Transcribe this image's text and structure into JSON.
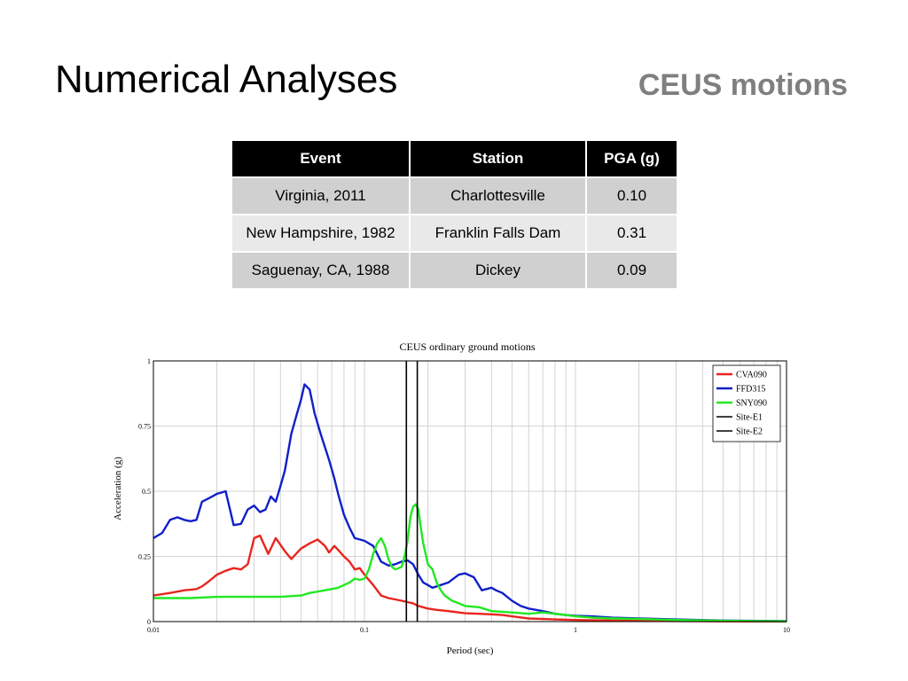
{
  "slide": {
    "title": "Numerical Analyses",
    "subtitle": "CEUS motions"
  },
  "table": {
    "headers": [
      "Event",
      "Station",
      "PGA (g)"
    ],
    "rows": [
      [
        "Virginia, 2011",
        "Charlottesville",
        "0.10"
      ],
      [
        "New Hampshire, 1982",
        "Franklin Falls Dam",
        "0.31"
      ],
      [
        "Saguenay, CA, 1988",
        "Dickey",
        "0.09"
      ]
    ]
  },
  "chart_data": {
    "type": "line",
    "title": "CEUS ordinary ground motions",
    "xlabel": "Period (sec)",
    "ylabel": "Acceleration (g)",
    "x_scale": "log",
    "xlim": [
      0.01,
      10
    ],
    "ylim": [
      0,
      1
    ],
    "x_ticks": [
      0.01,
      0.1,
      1,
      10
    ],
    "x_tick_labels": [
      "0.01",
      "0.1",
      "1",
      "10"
    ],
    "y_ticks": [
      0,
      0.25,
      0.5,
      0.75,
      1
    ],
    "y_tick_labels": [
      "0",
      "0.25",
      "0.5",
      "0.75",
      "1"
    ],
    "grid": true,
    "legend_position": "top-right",
    "series": [
      {
        "name": "CVA090",
        "color": "#e8251e",
        "points": [
          [
            0.01,
            0.1
          ],
          [
            0.011,
            0.105
          ],
          [
            0.012,
            0.11
          ],
          [
            0.013,
            0.115
          ],
          [
            0.014,
            0.12
          ],
          [
            0.015,
            0.122
          ],
          [
            0.016,
            0.125
          ],
          [
            0.017,
            0.135
          ],
          [
            0.018,
            0.15
          ],
          [
            0.019,
            0.165
          ],
          [
            0.02,
            0.18
          ],
          [
            0.022,
            0.195
          ],
          [
            0.024,
            0.205
          ],
          [
            0.026,
            0.2
          ],
          [
            0.028,
            0.22
          ],
          [
            0.03,
            0.32
          ],
          [
            0.032,
            0.33
          ],
          [
            0.035,
            0.26
          ],
          [
            0.038,
            0.32
          ],
          [
            0.042,
            0.27
          ],
          [
            0.045,
            0.24
          ],
          [
            0.05,
            0.28
          ],
          [
            0.055,
            0.3
          ],
          [
            0.06,
            0.315
          ],
          [
            0.065,
            0.29
          ],
          [
            0.068,
            0.265
          ],
          [
            0.072,
            0.29
          ],
          [
            0.075,
            0.275
          ],
          [
            0.08,
            0.25
          ],
          [
            0.085,
            0.23
          ],
          [
            0.09,
            0.2
          ],
          [
            0.095,
            0.205
          ],
          [
            0.1,
            0.18
          ],
          [
            0.11,
            0.14
          ],
          [
            0.12,
            0.1
          ],
          [
            0.13,
            0.09
          ],
          [
            0.14,
            0.085
          ],
          [
            0.15,
            0.08
          ],
          [
            0.16,
            0.075
          ],
          [
            0.17,
            0.07
          ],
          [
            0.18,
            0.06
          ],
          [
            0.2,
            0.05
          ],
          [
            0.22,
            0.045
          ],
          [
            0.25,
            0.04
          ],
          [
            0.28,
            0.035
          ],
          [
            0.3,
            0.032
          ],
          [
            0.35,
            0.03
          ],
          [
            0.4,
            0.028
          ],
          [
            0.45,
            0.025
          ],
          [
            0.5,
            0.02
          ],
          [
            0.6,
            0.012
          ],
          [
            0.7,
            0.01
          ],
          [
            0.8,
            0.008
          ],
          [
            1,
            0.006
          ],
          [
            1.5,
            0.004
          ],
          [
            2,
            0.003
          ],
          [
            3,
            0.002
          ],
          [
            5,
            0.001
          ],
          [
            10,
            0.0005
          ]
        ]
      },
      {
        "name": "FFD315",
        "color": "#1020c8",
        "points": [
          [
            0.01,
            0.32
          ],
          [
            0.011,
            0.34
          ],
          [
            0.012,
            0.39
          ],
          [
            0.013,
            0.4
          ],
          [
            0.014,
            0.39
          ],
          [
            0.015,
            0.385
          ],
          [
            0.016,
            0.39
          ],
          [
            0.017,
            0.46
          ],
          [
            0.018,
            0.47
          ],
          [
            0.019,
            0.48
          ],
          [
            0.02,
            0.49
          ],
          [
            0.021,
            0.495
          ],
          [
            0.022,
            0.5
          ],
          [
            0.024,
            0.37
          ],
          [
            0.026,
            0.375
          ],
          [
            0.028,
            0.43
          ],
          [
            0.03,
            0.445
          ],
          [
            0.032,
            0.42
          ],
          [
            0.034,
            0.43
          ],
          [
            0.036,
            0.48
          ],
          [
            0.038,
            0.46
          ],
          [
            0.04,
            0.52
          ],
          [
            0.042,
            0.58
          ],
          [
            0.045,
            0.72
          ],
          [
            0.048,
            0.8
          ],
          [
            0.05,
            0.85
          ],
          [
            0.052,
            0.91
          ],
          [
            0.055,
            0.89
          ],
          [
            0.058,
            0.8
          ],
          [
            0.062,
            0.72
          ],
          [
            0.068,
            0.62
          ],
          [
            0.072,
            0.55
          ],
          [
            0.075,
            0.49
          ],
          [
            0.08,
            0.41
          ],
          [
            0.085,
            0.36
          ],
          [
            0.09,
            0.32
          ],
          [
            0.095,
            0.315
          ],
          [
            0.1,
            0.31
          ],
          [
            0.11,
            0.29
          ],
          [
            0.12,
            0.23
          ],
          [
            0.13,
            0.215
          ],
          [
            0.14,
            0.22
          ],
          [
            0.15,
            0.23
          ],
          [
            0.16,
            0.235
          ],
          [
            0.17,
            0.22
          ],
          [
            0.18,
            0.18
          ],
          [
            0.19,
            0.15
          ],
          [
            0.2,
            0.14
          ],
          [
            0.21,
            0.13
          ],
          [
            0.22,
            0.135
          ],
          [
            0.25,
            0.15
          ],
          [
            0.28,
            0.18
          ],
          [
            0.3,
            0.185
          ],
          [
            0.33,
            0.17
          ],
          [
            0.36,
            0.12
          ],
          [
            0.4,
            0.13
          ],
          [
            0.42,
            0.12
          ],
          [
            0.45,
            0.11
          ],
          [
            0.5,
            0.08
          ],
          [
            0.55,
            0.06
          ],
          [
            0.6,
            0.05
          ],
          [
            0.7,
            0.04
          ],
          [
            0.8,
            0.03
          ],
          [
            0.9,
            0.025
          ],
          [
            1,
            0.022
          ],
          [
            1.2,
            0.02
          ],
          [
            1.5,
            0.015
          ],
          [
            2,
            0.012
          ],
          [
            3,
            0.008
          ],
          [
            5,
            0.004
          ],
          [
            10,
            0.002
          ]
        ]
      },
      {
        "name": "SNY090",
        "color": "#22e822",
        "points": [
          [
            0.01,
            0.09
          ],
          [
            0.015,
            0.09
          ],
          [
            0.02,
            0.095
          ],
          [
            0.03,
            0.095
          ],
          [
            0.04,
            0.095
          ],
          [
            0.05,
            0.1
          ],
          [
            0.055,
            0.11
          ],
          [
            0.06,
            0.115
          ],
          [
            0.065,
            0.12
          ],
          [
            0.07,
            0.125
          ],
          [
            0.075,
            0.13
          ],
          [
            0.08,
            0.14
          ],
          [
            0.085,
            0.15
          ],
          [
            0.09,
            0.165
          ],
          [
            0.095,
            0.16
          ],
          [
            0.1,
            0.165
          ],
          [
            0.105,
            0.2
          ],
          [
            0.11,
            0.26
          ],
          [
            0.115,
            0.3
          ],
          [
            0.12,
            0.32
          ],
          [
            0.125,
            0.29
          ],
          [
            0.13,
            0.24
          ],
          [
            0.135,
            0.21
          ],
          [
            0.14,
            0.2
          ],
          [
            0.15,
            0.21
          ],
          [
            0.155,
            0.25
          ],
          [
            0.16,
            0.31
          ],
          [
            0.165,
            0.4
          ],
          [
            0.17,
            0.44
          ],
          [
            0.175,
            0.45
          ],
          [
            0.18,
            0.43
          ],
          [
            0.185,
            0.36
          ],
          [
            0.19,
            0.3
          ],
          [
            0.2,
            0.22
          ],
          [
            0.21,
            0.2
          ],
          [
            0.22,
            0.15
          ],
          [
            0.23,
            0.12
          ],
          [
            0.24,
            0.1
          ],
          [
            0.26,
            0.08
          ],
          [
            0.28,
            0.07
          ],
          [
            0.3,
            0.06
          ],
          [
            0.35,
            0.055
          ],
          [
            0.4,
            0.04
          ],
          [
            0.5,
            0.035
          ],
          [
            0.6,
            0.03
          ],
          [
            0.7,
            0.035
          ],
          [
            0.8,
            0.03
          ],
          [
            0.9,
            0.025
          ],
          [
            1,
            0.02
          ],
          [
            1.2,
            0.015
          ],
          [
            1.5,
            0.012
          ],
          [
            2,
            0.01
          ],
          [
            3,
            0.006
          ],
          [
            5,
            0.003
          ],
          [
            10,
            0.001
          ]
        ]
      },
      {
        "name": "Site-E1",
        "color": "#000000",
        "x": 0.158
      },
      {
        "name": "Site-E2",
        "color": "#000000",
        "x": 0.178
      }
    ]
  }
}
